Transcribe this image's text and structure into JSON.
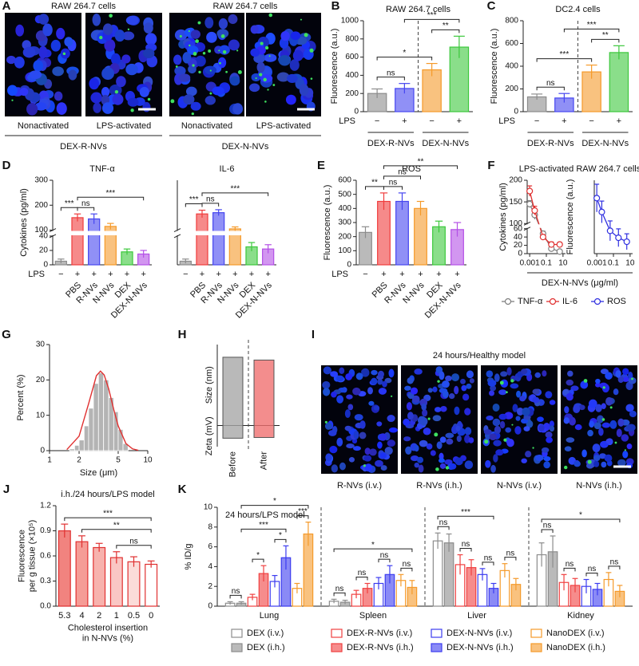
{
  "panel_letters": [
    "A",
    "B",
    "C",
    "D",
    "E",
    "F",
    "G",
    "H",
    "I",
    "J",
    "K"
  ],
  "panel_A": {
    "groups": [
      {
        "title": "RAW 264.7 cells",
        "images": [
          "Nonactivated",
          "LPS-activated"
        ],
        "label": "DEX-R-NVs"
      },
      {
        "title": "RAW 264.7 cells",
        "images": [
          "Nonactivated",
          "LPS-activated"
        ],
        "label": "DEX-N-NVs"
      }
    ]
  },
  "panel_I": {
    "title": "24 hours/Healthy model",
    "images": [
      "R-NVs (i.v.)",
      "R-NVs (i.h.)",
      "N-NVs (i.v.)",
      "N-NVs (i.h.)"
    ]
  },
  "chart_data": [
    {
      "type": "bar",
      "title": "RAW 264.7 cells",
      "ylabel": "Fluorescence (a.u.)",
      "row_label": "LPS",
      "row": [
        "−",
        "+",
        "−",
        "+"
      ],
      "groups": [
        {
          "label": "DEX-R-NVs",
          "span": [
            0,
            1
          ]
        },
        {
          "label": "DEX-N-NVs",
          "span": [
            2,
            3
          ]
        }
      ],
      "colors": [
        "#8c8c8c",
        "#4646f0",
        "#f59a2a",
        "#3cc83c"
      ],
      "values": [
        200,
        255,
        460,
        710
      ],
      "errors": [
        50,
        55,
        70,
        120
      ],
      "ylim": [
        0,
        1000
      ],
      "yticks": [
        0,
        200,
        400,
        600,
        800,
        1000
      ],
      "annotations": [
        {
          "label": "ns",
          "between": [
            0,
            1
          ]
        },
        {
          "label": "**",
          "between": [
            2,
            3
          ]
        },
        {
          "label": "*",
          "between": [
            0,
            2
          ]
        },
        {
          "label": "***",
          "between": [
            1,
            3
          ]
        }
      ]
    },
    {
      "type": "bar",
      "title": "DC2.4 cells",
      "ylabel": "Fluorescence (a.u.)",
      "row_label": "LPS",
      "row": [
        "−",
        "+",
        "−",
        "+"
      ],
      "groups": [
        {
          "label": "DEX-R-NVs",
          "span": [
            0,
            1
          ]
        },
        {
          "label": "DEX-N-NVs",
          "span": [
            2,
            3
          ]
        }
      ],
      "colors": [
        "#8c8c8c",
        "#4646f0",
        "#f59a2a",
        "#3cc83c"
      ],
      "values": [
        130,
        120,
        350,
        520
      ],
      "errors": [
        25,
        40,
        60,
        60
      ],
      "ylim": [
        0,
        800
      ],
      "yticks": [
        0,
        200,
        400,
        600,
        800
      ],
      "annotations": [
        {
          "label": "ns",
          "between": [
            0,
            1
          ]
        },
        {
          "label": "**",
          "between": [
            2,
            3
          ]
        },
        {
          "label": "***",
          "between": [
            0,
            2
          ]
        },
        {
          "label": "***",
          "between": [
            1,
            3
          ]
        }
      ]
    },
    {
      "type": "bar",
      "title": "TNF-α",
      "ylabel": "Cytokines (pg/ml)",
      "categories": [
        null,
        "PBS",
        "R-NVs",
        "N-NVs",
        "DEX",
        "DEX-N-NVs"
      ],
      "row_label": "LPS",
      "row": [
        "−",
        "+",
        "+",
        "+",
        "+",
        "+"
      ],
      "colors": [
        "#8c8c8c",
        "#f03c3c",
        "#4646f0",
        "#f59a2a",
        "#3cc83c",
        "#b450e6"
      ],
      "values": [
        5,
        150,
        145,
        115,
        18,
        15
      ],
      "errors": [
        3,
        15,
        20,
        12,
        4,
        5
      ],
      "ylim": [
        0,
        300
      ],
      "axis_break": [
        40,
        100
      ],
      "yticks": [
        0,
        20,
        40,
        100,
        200,
        300
      ],
      "annotations": [
        {
          "label": "***",
          "between": [
            0,
            1
          ]
        },
        {
          "label": "ns",
          "between": [
            1,
            2
          ]
        },
        {
          "label": "***",
          "between": [
            1,
            5
          ]
        }
      ]
    },
    {
      "type": "bar",
      "title": "IL-6",
      "categories": [
        null,
        "PBS",
        "R-NVs",
        "N-NVs",
        "DEX",
        "DEX-N-NVs"
      ],
      "row": [
        "−",
        "+",
        "+",
        "+",
        "+",
        "+"
      ],
      "colors": [
        "#8c8c8c",
        "#f03c3c",
        "#4646f0",
        "#f59a2a",
        "#3cc83c",
        "#b450e6"
      ],
      "values": [
        5,
        165,
        170,
        105,
        25,
        22
      ],
      "errors": [
        3,
        15,
        12,
        8,
        6,
        6
      ],
      "ylim": [
        0,
        300
      ],
      "axis_break": [
        40,
        100
      ],
      "annotations": [
        {
          "label": "***",
          "between": [
            0,
            1
          ]
        },
        {
          "label": "ns",
          "between": [
            1,
            2
          ]
        },
        {
          "label": "***",
          "between": [
            1,
            5
          ]
        }
      ]
    },
    {
      "type": "bar",
      "title": "ROS",
      "ylabel": "Fluorescence (a.u.)",
      "categories": [
        null,
        "PBS",
        "R-NVs",
        "N-NVs",
        "DEX",
        "DEX-N-NVs"
      ],
      "row_label": "LPS",
      "row": [
        "−",
        "+",
        "+",
        "+",
        "+",
        "+"
      ],
      "colors": [
        "#8c8c8c",
        "#f03c3c",
        "#4646f0",
        "#f59a2a",
        "#3cc83c",
        "#b450e6"
      ],
      "values": [
        230,
        450,
        450,
        400,
        270,
        250
      ],
      "errors": [
        40,
        60,
        60,
        50,
        40,
        50
      ],
      "ylim": [
        0,
        600
      ],
      "yticks": [
        0,
        100,
        200,
        300,
        400,
        500,
        600
      ],
      "annotations": [
        {
          "label": "**",
          "between": [
            0,
            1
          ]
        },
        {
          "label": "ns",
          "between": [
            1,
            2
          ]
        },
        {
          "label": "ns",
          "between": [
            1,
            3
          ]
        },
        {
          "label": "**",
          "between": [
            1,
            5
          ]
        }
      ]
    },
    {
      "type": "line",
      "title": "LPS-activated RAW 264.7 cells",
      "ylabel": "Cytokines (pg/ml)",
      "xlabel": "DEX-N-NVs (μg/ml)",
      "x": [
        0.001,
        0.004,
        0.04,
        0.4,
        4
      ],
      "xscale": "log",
      "xlim": [
        0.0005,
        20
      ],
      "xticks": [
        0.001,
        0.1,
        10
      ],
      "ylim": [
        0,
        200
      ],
      "axis_break": [
        60,
        100
      ],
      "yticks": [
        0,
        20,
        40,
        60,
        100,
        150,
        200
      ],
      "series": [
        {
          "name": "TNF-α",
          "color": "#808080",
          "values": [
            145,
            120,
            48,
            12,
            5
          ],
          "errors": [
            8,
            10,
            6,
            4,
            2
          ]
        },
        {
          "name": "IL-6",
          "color": "#e03030",
          "values": [
            175,
            130,
            40,
            22,
            22
          ],
          "errors": [
            12,
            10,
            5,
            6,
            5
          ]
        }
      ]
    },
    {
      "type": "line",
      "ylabel": "Fluorescence (a.u.)",
      "x": [
        0.001,
        0.004,
        0.04,
        0.4,
        4
      ],
      "xscale": "log",
      "xlim": [
        0.0005,
        20
      ],
      "xticks": [
        0.001,
        0.1,
        10
      ],
      "ylim": [
        150,
        520
      ],
      "series": [
        {
          "name": "ROS",
          "color": "#3030e0",
          "values": [
            430,
            360,
            265,
            230,
            210
          ],
          "errors": [
            70,
            55,
            50,
            45,
            40
          ]
        }
      ]
    },
    {
      "type": "histogram",
      "xlabel": "Size (μm)",
      "ylabel": "Percent (%)",
      "bins": [
        1.6,
        1.8,
        2.0,
        2.25,
        2.5,
        2.8,
        3.15,
        3.55,
        4.0,
        4.5,
        5.0,
        5.6,
        6.3
      ],
      "counts": [
        0.5,
        1.5,
        3,
        7,
        12,
        19,
        22,
        20,
        15,
        11,
        6,
        2
      ],
      "color": "#b4b4b4",
      "fit": {
        "color": "#e03030",
        "x": [
          1.5,
          2,
          2.5,
          3,
          3.3,
          3.6,
          4,
          4.5,
          5,
          6,
          7,
          8
        ],
        "values": [
          0.3,
          4.1,
          13.3,
          21.2,
          22.5,
          21.4,
          17.5,
          11.7,
          7,
          2,
          0.5,
          0.1
        ]
      },
      "xscale": "log",
      "xlim": [
        1,
        10
      ],
      "xticks": [
        1,
        2,
        5,
        10
      ],
      "ylim": [
        0,
        30
      ],
      "yticks": [
        0,
        10,
        20,
        30
      ]
    },
    {
      "type": "range",
      "categories": [
        "Before",
        "After"
      ],
      "colors": [
        "#a8a8a8",
        "#f07070"
      ],
      "series": [
        {
          "name": "Size (nm)",
          "values": [
            97,
            93
          ]
        },
        {
          "name": "Zeta (mV)",
          "values": [
            -18,
            -17
          ]
        }
      ],
      "ylim": [
        -30,
        115
      ]
    },
    {
      "type": "bar",
      "title": "i.h./24 hours/LPS model",
      "ylabel": [
        "Fluorescence",
        "per g tissue (×10⁵)"
      ],
      "xlabel": [
        "Cholesterol insertion",
        "in N-NVs (%)"
      ],
      "categories": [
        "5.3",
        "4",
        "2",
        "1",
        "0.5",
        "0"
      ],
      "colors": [
        "#e8302a",
        "#ee5a50",
        "#f27e76",
        "#f6a29c",
        "#f9c4c0",
        "#ffffff"
      ],
      "edge": "#e03030",
      "values": [
        0.9,
        0.77,
        0.7,
        0.58,
        0.53,
        0.5
      ],
      "errors": [
        0.08,
        0.07,
        0.05,
        0.07,
        0.06,
        0.04
      ],
      "ylim": [
        0,
        1.2
      ],
      "yticks": [
        {
          "value": 0,
          "label": "0.0"
        },
        0.3,
        0.6,
        0.9,
        1.2
      ],
      "annotations": [
        {
          "label": "ns",
          "between": [
            3,
            5
          ]
        },
        {
          "label": "**",
          "between": [
            1,
            5
          ]
        },
        {
          "label": "***",
          "between": [
            0,
            5
          ]
        }
      ]
    },
    {
      "type": "bar",
      "title": "24 hours/LPS model",
      "ylabel": "% ID/g",
      "categories": [
        "Lung",
        "Spleen",
        "Liver",
        "Kidney"
      ],
      "series": [
        {
          "name": "DEX (i.v.)",
          "color": "#8c8c8c",
          "filled": false,
          "values": [
            0.3,
            0.5,
            6.6,
            5.2
          ],
          "errors": [
            0.15,
            0.2,
            0.8,
            1.2
          ]
        },
        {
          "name": "DEX (i.h.)",
          "color": "#8c8c8c",
          "filled": true,
          "values": [
            0.3,
            0.4,
            6.4,
            5.5
          ],
          "errors": [
            0.15,
            0.2,
            0.9,
            1.6
          ]
        },
        {
          "name": "DEX-R-NVs (i.v.)",
          "color": "#f04040",
          "filled": false,
          "values": [
            0.9,
            1.2,
            4.2,
            2.4
          ],
          "errors": [
            0.3,
            0.4,
            1.0,
            0.8
          ]
        },
        {
          "name": "DEX-R-NVs (i.h.)",
          "color": "#f04040",
          "filled": true,
          "values": [
            3.3,
            1.8,
            3.9,
            2.1
          ],
          "errors": [
            0.8,
            0.5,
            0.8,
            0.7
          ]
        },
        {
          "name": "DEX-N-NVs (i.v.)",
          "color": "#3c3cf0",
          "filled": false,
          "values": [
            2.5,
            2.3,
            3.2,
            2.0
          ],
          "errors": [
            0.6,
            0.6,
            0.6,
            0.7
          ]
        },
        {
          "name": "DEX-N-NVs (i.h.)",
          "color": "#3c3cf0",
          "filled": true,
          "values": [
            4.9,
            3.2,
            1.8,
            1.7
          ],
          "errors": [
            1.2,
            0.9,
            0.5,
            0.6
          ]
        },
        {
          "name": "NanoDEX (i.v.)",
          "color": "#f59a2a",
          "filled": false,
          "values": [
            1.8,
            2.6,
            3.6,
            2.7
          ],
          "errors": [
            0.5,
            0.6,
            0.7,
            0.7
          ]
        },
        {
          "name": "NanoDEX (i.h.)",
          "color": "#f59a2a",
          "filled": true,
          "values": [
            7.3,
            1.9,
            2.2,
            1.5
          ],
          "errors": [
            1.2,
            0.7,
            0.6,
            0.6
          ]
        }
      ],
      "ylim": [
        0,
        10
      ],
      "yticks": [
        0,
        2,
        4,
        6,
        8,
        10
      ],
      "annotations": [
        {
          "label": "ns",
          "category": 0,
          "between": [
            0,
            1
          ]
        },
        {
          "label": "*",
          "category": 0,
          "between": [
            2,
            3
          ]
        },
        {
          "label": "*",
          "category": 0,
          "between": [
            4,
            5
          ]
        },
        {
          "label": "***",
          "category": 0,
          "between": [
            6,
            7
          ]
        },
        {
          "label": "***",
          "category": 0,
          "between": [
            1,
            5
          ]
        },
        {
          "label": "*",
          "category": 0,
          "between": [
            1,
            7
          ]
        },
        {
          "label": "ns",
          "category": 1,
          "between": [
            0,
            1
          ]
        },
        {
          "label": "ns",
          "category": 1,
          "between": [
            2,
            3
          ]
        },
        {
          "label": "ns",
          "category": 1,
          "between": [
            4,
            5
          ]
        },
        {
          "label": "ns",
          "category": 1,
          "between": [
            6,
            7
          ]
        },
        {
          "label": "*",
          "category": 1,
          "between": [
            0,
            7
          ]
        },
        {
          "label": "ns",
          "category": 2,
          "between": [
            0,
            1
          ]
        },
        {
          "label": "ns",
          "category": 2,
          "between": [
            2,
            3
          ]
        },
        {
          "label": "ns",
          "category": 2,
          "between": [
            4,
            5
          ]
        },
        {
          "label": "ns",
          "category": 2,
          "between": [
            6,
            7
          ]
        },
        {
          "label": "***",
          "category": 2,
          "between": [
            0,
            5
          ]
        },
        {
          "label": "ns",
          "category": 3,
          "between": [
            0,
            1
          ]
        },
        {
          "label": "ns",
          "category": 3,
          "between": [
            2,
            3
          ]
        },
        {
          "label": "ns",
          "category": 3,
          "between": [
            4,
            5
          ]
        },
        {
          "label": "ns",
          "category": 3,
          "between": [
            6,
            7
          ]
        },
        {
          "label": "*",
          "category": 3,
          "between": [
            0,
            7
          ]
        }
      ]
    }
  ]
}
